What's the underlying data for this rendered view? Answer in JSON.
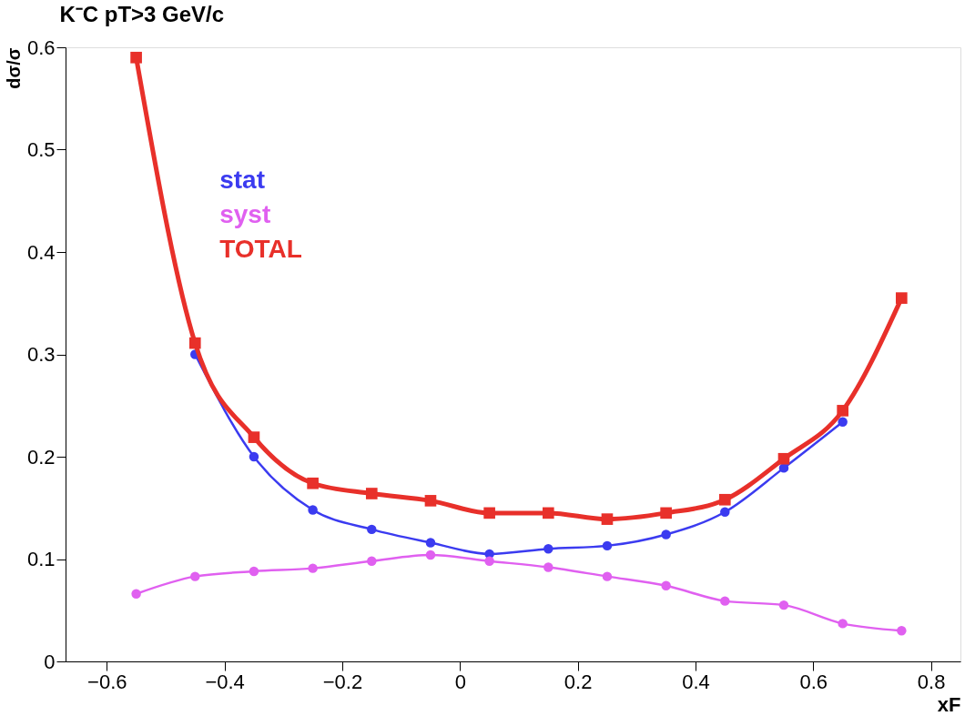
{
  "chart_data": {
    "type": "line",
    "title": "K⁻C   pT>3 GeV/c",
    "xlabel": "xF",
    "ylabel": "dσ/σ",
    "x": [
      -0.55,
      -0.45,
      -0.35,
      -0.25,
      -0.15,
      -0.05,
      0.05,
      0.15,
      0.25,
      0.35,
      0.45,
      0.55,
      0.65,
      0.75
    ],
    "series": [
      {
        "name": "stat",
        "color": "#3b3bf0",
        "marker": "circle",
        "values": [
          null,
          0.3,
          0.2,
          0.148,
          0.129,
          0.116,
          0.105,
          0.11,
          0.113,
          0.124,
          0.146,
          0.189,
          0.234,
          null
        ]
      },
      {
        "name": "syst",
        "color": "#e060f0",
        "marker": "circle",
        "values": [
          0.066,
          0.083,
          0.088,
          0.091,
          0.098,
          0.104,
          0.098,
          0.092,
          0.083,
          0.074,
          0.059,
          0.055,
          0.037,
          0.03
        ]
      },
      {
        "name": "TOTAL",
        "color": "#e8302a",
        "marker": "square",
        "values": [
          0.59,
          0.311,
          0.219,
          0.174,
          0.164,
          0.157,
          0.145,
          0.145,
          0.139,
          0.145,
          0.158,
          0.198,
          0.245,
          0.355
        ]
      }
    ],
    "xlim": [
      -0.67,
      0.85
    ],
    "ylim": [
      0,
      0.6
    ],
    "xticks": [
      -0.6,
      -0.4,
      -0.2,
      0,
      0.2,
      0.4,
      0.6,
      0.8
    ],
    "yticks": [
      0,
      0.1,
      0.2,
      0.3,
      0.4,
      0.5,
      0.6
    ],
    "grid": false,
    "legend": "top left",
    "line_style": "solid"
  }
}
